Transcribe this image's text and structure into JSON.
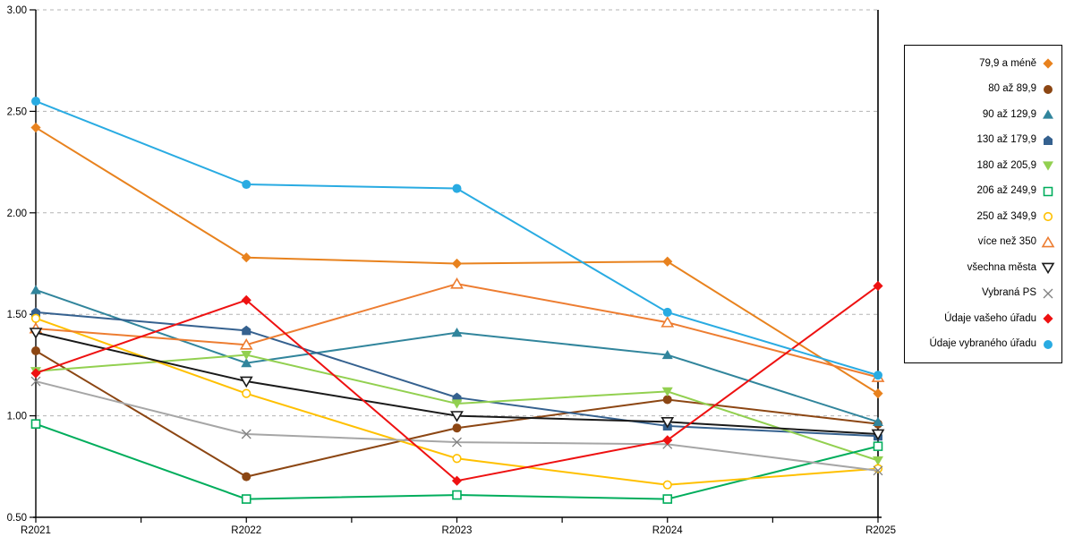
{
  "page": {
    "background": "#FFFFFF"
  },
  "chart_data": {
    "type": "line",
    "title": "",
    "xlabel": "",
    "ylabel": "",
    "categories": [
      "R2021",
      "R2022",
      "R2023",
      "R2024",
      "R2025"
    ],
    "ylim": [
      0.5,
      3.0
    ],
    "yticks": [
      0.5,
      1.0,
      1.5,
      2.0,
      2.5,
      3.0
    ],
    "ytick_labels": [
      "0.50",
      "1.00",
      "1.50",
      "2.00",
      "2.50",
      "3.00"
    ],
    "grid": "dashed-horizontal",
    "legend_position": "right",
    "axis_color": "#000000",
    "gridline_color": "#B3B3B3",
    "series": [
      {
        "name": "79,9 a méně",
        "color": "#E8821E",
        "marker": "diamond",
        "marker_fill": "filled",
        "values": [
          2.42,
          1.78,
          1.75,
          1.76,
          1.11
        ]
      },
      {
        "name": "80 až 89,9",
        "color": "#8C4613",
        "marker": "circle",
        "marker_fill": "filled",
        "values": [
          1.32,
          0.7,
          0.94,
          1.08,
          0.96
        ]
      },
      {
        "name": "90 až 129,9",
        "color": "#31859C",
        "marker": "triangle-up",
        "marker_fill": "filled",
        "values": [
          1.62,
          1.26,
          1.41,
          1.3,
          0.97
        ]
      },
      {
        "name": "130 až 179,9",
        "color": "#35618F",
        "marker": "pentagon",
        "marker_fill": "filled",
        "values": [
          1.51,
          1.42,
          1.09,
          0.95,
          0.9
        ]
      },
      {
        "name": "180 až 205,9",
        "color": "#92D050",
        "marker": "triangle-down",
        "marker_fill": "filled",
        "values": [
          1.22,
          1.3,
          1.06,
          1.12,
          0.78
        ]
      },
      {
        "name": "206 až 249,9",
        "color": "#00AD5C",
        "marker": "square",
        "marker_fill": "open",
        "values": [
          0.96,
          0.59,
          0.61,
          0.59,
          0.85
        ]
      },
      {
        "name": "250 až 349,9",
        "color": "#FFC000",
        "marker": "circle",
        "marker_fill": "open",
        "values": [
          1.48,
          1.11,
          0.79,
          0.66,
          0.74
        ]
      },
      {
        "name": "více než 350",
        "color": "#ED7D31",
        "marker": "triangle-up",
        "marker_fill": "open",
        "values": [
          1.43,
          1.35,
          1.65,
          1.46,
          1.19
        ]
      },
      {
        "name": "všechna města",
        "color": "#1A1A1A",
        "marker": "triangle-down",
        "marker_fill": "open",
        "values": [
          1.41,
          1.17,
          1.0,
          0.97,
          0.91
        ]
      },
      {
        "name": "Vybraná PS",
        "color": "#A6A6A6",
        "marker": "x",
        "marker_fill": "open",
        "marker_color": "#808080",
        "values": [
          1.17,
          0.91,
          0.87,
          0.86,
          0.73
        ]
      },
      {
        "name": "Údaje vašeho úřadu",
        "color": "#EE1111",
        "marker": "diamond",
        "marker_fill": "filled",
        "values": [
          1.21,
          1.57,
          0.68,
          0.88,
          1.64
        ]
      },
      {
        "name": "Údaje vybraného úřadu",
        "color": "#29ABE2",
        "marker": "circle",
        "marker_fill": "filled",
        "values": [
          2.55,
          2.14,
          2.12,
          1.51,
          1.2
        ]
      }
    ]
  }
}
